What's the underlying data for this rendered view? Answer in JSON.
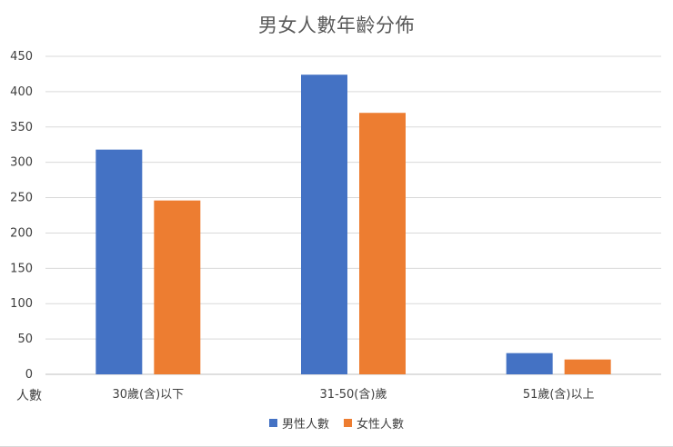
{
  "chart_data": {
    "type": "bar",
    "title": "男女人數年齡分佈",
    "ylabel": "人數",
    "xlabel": "",
    "ylim": [
      0,
      450
    ],
    "yticks": [
      0,
      50,
      100,
      150,
      200,
      250,
      300,
      350,
      400,
      450
    ],
    "grid": true,
    "legend_position": "bottom",
    "categories": [
      "30歲(含)以下",
      "31-50(含)歲",
      "51歲(含)以上"
    ],
    "series": [
      {
        "name": "男性人數",
        "color": "#4472c4",
        "values": [
          318,
          424,
          30
        ]
      },
      {
        "name": "女性人數",
        "color": "#ed7d31",
        "values": [
          246,
          370,
          21
        ]
      }
    ]
  }
}
